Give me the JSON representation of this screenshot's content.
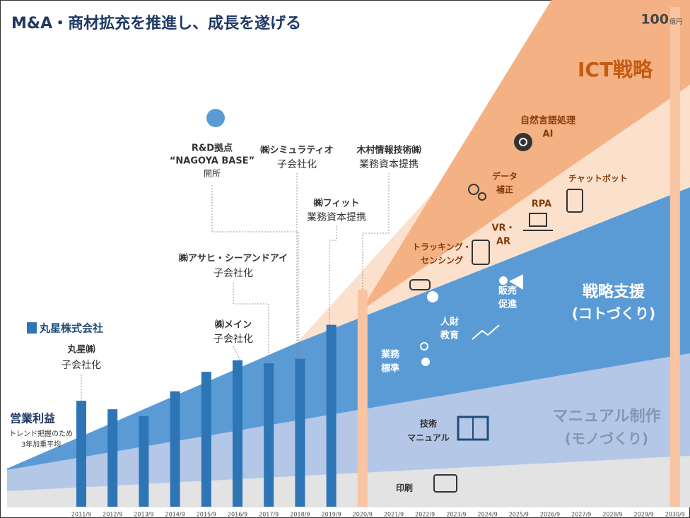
{
  "chart_data": {
    "type": "bar",
    "title": "M&A・商材拡充を推進し、成長を遂げる",
    "categories": [
      "2011/9",
      "2012/9",
      "2013/9",
      "2014/9",
      "2015/9",
      "2016/9",
      "2017/9",
      "2018/9",
      "2019/9",
      "2020/9",
      "2021/9",
      "2022/9",
      "2023/9",
      "2024/9",
      "2025/9",
      "2026/9",
      "2027/9",
      "2028/9",
      "2029/9",
      "2030/9"
    ],
    "values": [
      21.2,
      19.5,
      18.1,
      23.1,
      27,
      29.3,
      28.7,
      29.6,
      36.4,
      43.4,
      null,
      null,
      null,
      null,
      null,
      null,
      null,
      null,
      null,
      100
    ],
    "colors": [
      "#2e75b6",
      "#2e75b6",
      "#2e75b6",
      "#2e75b6",
      "#2e75b6",
      "#2e75b6",
      "#2e75b6",
      "#2e75b6",
      "#2e75b6",
      "#f8c4a2",
      "#2e75b6",
      "#2e75b6",
      "#2e75b6",
      "#2e75b6",
      "#2e75b6",
      "#2e75b6",
      "#2e75b6",
      "#2e75b6",
      "#2e75b6",
      "#f8c4a2"
    ],
    "ylim": [
      0,
      100
    ],
    "value_unit": "億円",
    "y_label": "営業利益",
    "y_note": [
      "トレンド把握のため",
      "3年加重平均"
    ],
    "logo": "丸星株式会社",
    "events": [
      {
        "lines": [
          "丸星㈱",
          "子会社化"
        ]
      },
      {
        "lines": [
          "㈱メイン",
          "子会社化"
        ]
      },
      {
        "lines": [
          "㈱アサヒ・シーアンドアイ",
          "子会社化"
        ]
      },
      {
        "lines": [
          "R&D拠点",
          "“NAGOYA BASE”",
          "開所"
        ]
      },
      {
        "lines": [
          "㈱シミュラティオ",
          "子会社化"
        ]
      },
      {
        "lines": [
          "木村情報技術㈱",
          "業務資本提携"
        ]
      },
      {
        "lines": [
          "㈱フィット",
          "業務資本提携"
        ]
      }
    ],
    "segments": [
      {
        "lines": [
          "ICT戦略"
        ]
      },
      {
        "lines": [
          "戦略支援",
          "(コトづくり)"
        ]
      },
      {
        "lines": [
          "マニュアル制作",
          "(モノづくり)"
        ]
      }
    ],
    "items": [
      {
        "lines": [
          "自然言語処理",
          "AI"
        ]
      },
      {
        "lines": [
          "データ",
          "補正"
        ]
      },
      {
        "lines": [
          "チャットボット"
        ]
      },
      {
        "lines": [
          "RPA"
        ]
      },
      {
        "lines": [
          "VR・",
          "AR"
        ]
      },
      {
        "lines": [
          "トラッキング・",
          "センシング"
        ]
      },
      {
        "lines": [
          "販売",
          "促進"
        ]
      },
      {
        "lines": [
          "人財",
          "教育"
        ]
      },
      {
        "lines": [
          "業務",
          "標準"
        ]
      },
      {
        "lines": [
          "技術",
          "マニュアル"
        ]
      },
      {
        "lines": [
          "印刷"
        ]
      }
    ]
  }
}
